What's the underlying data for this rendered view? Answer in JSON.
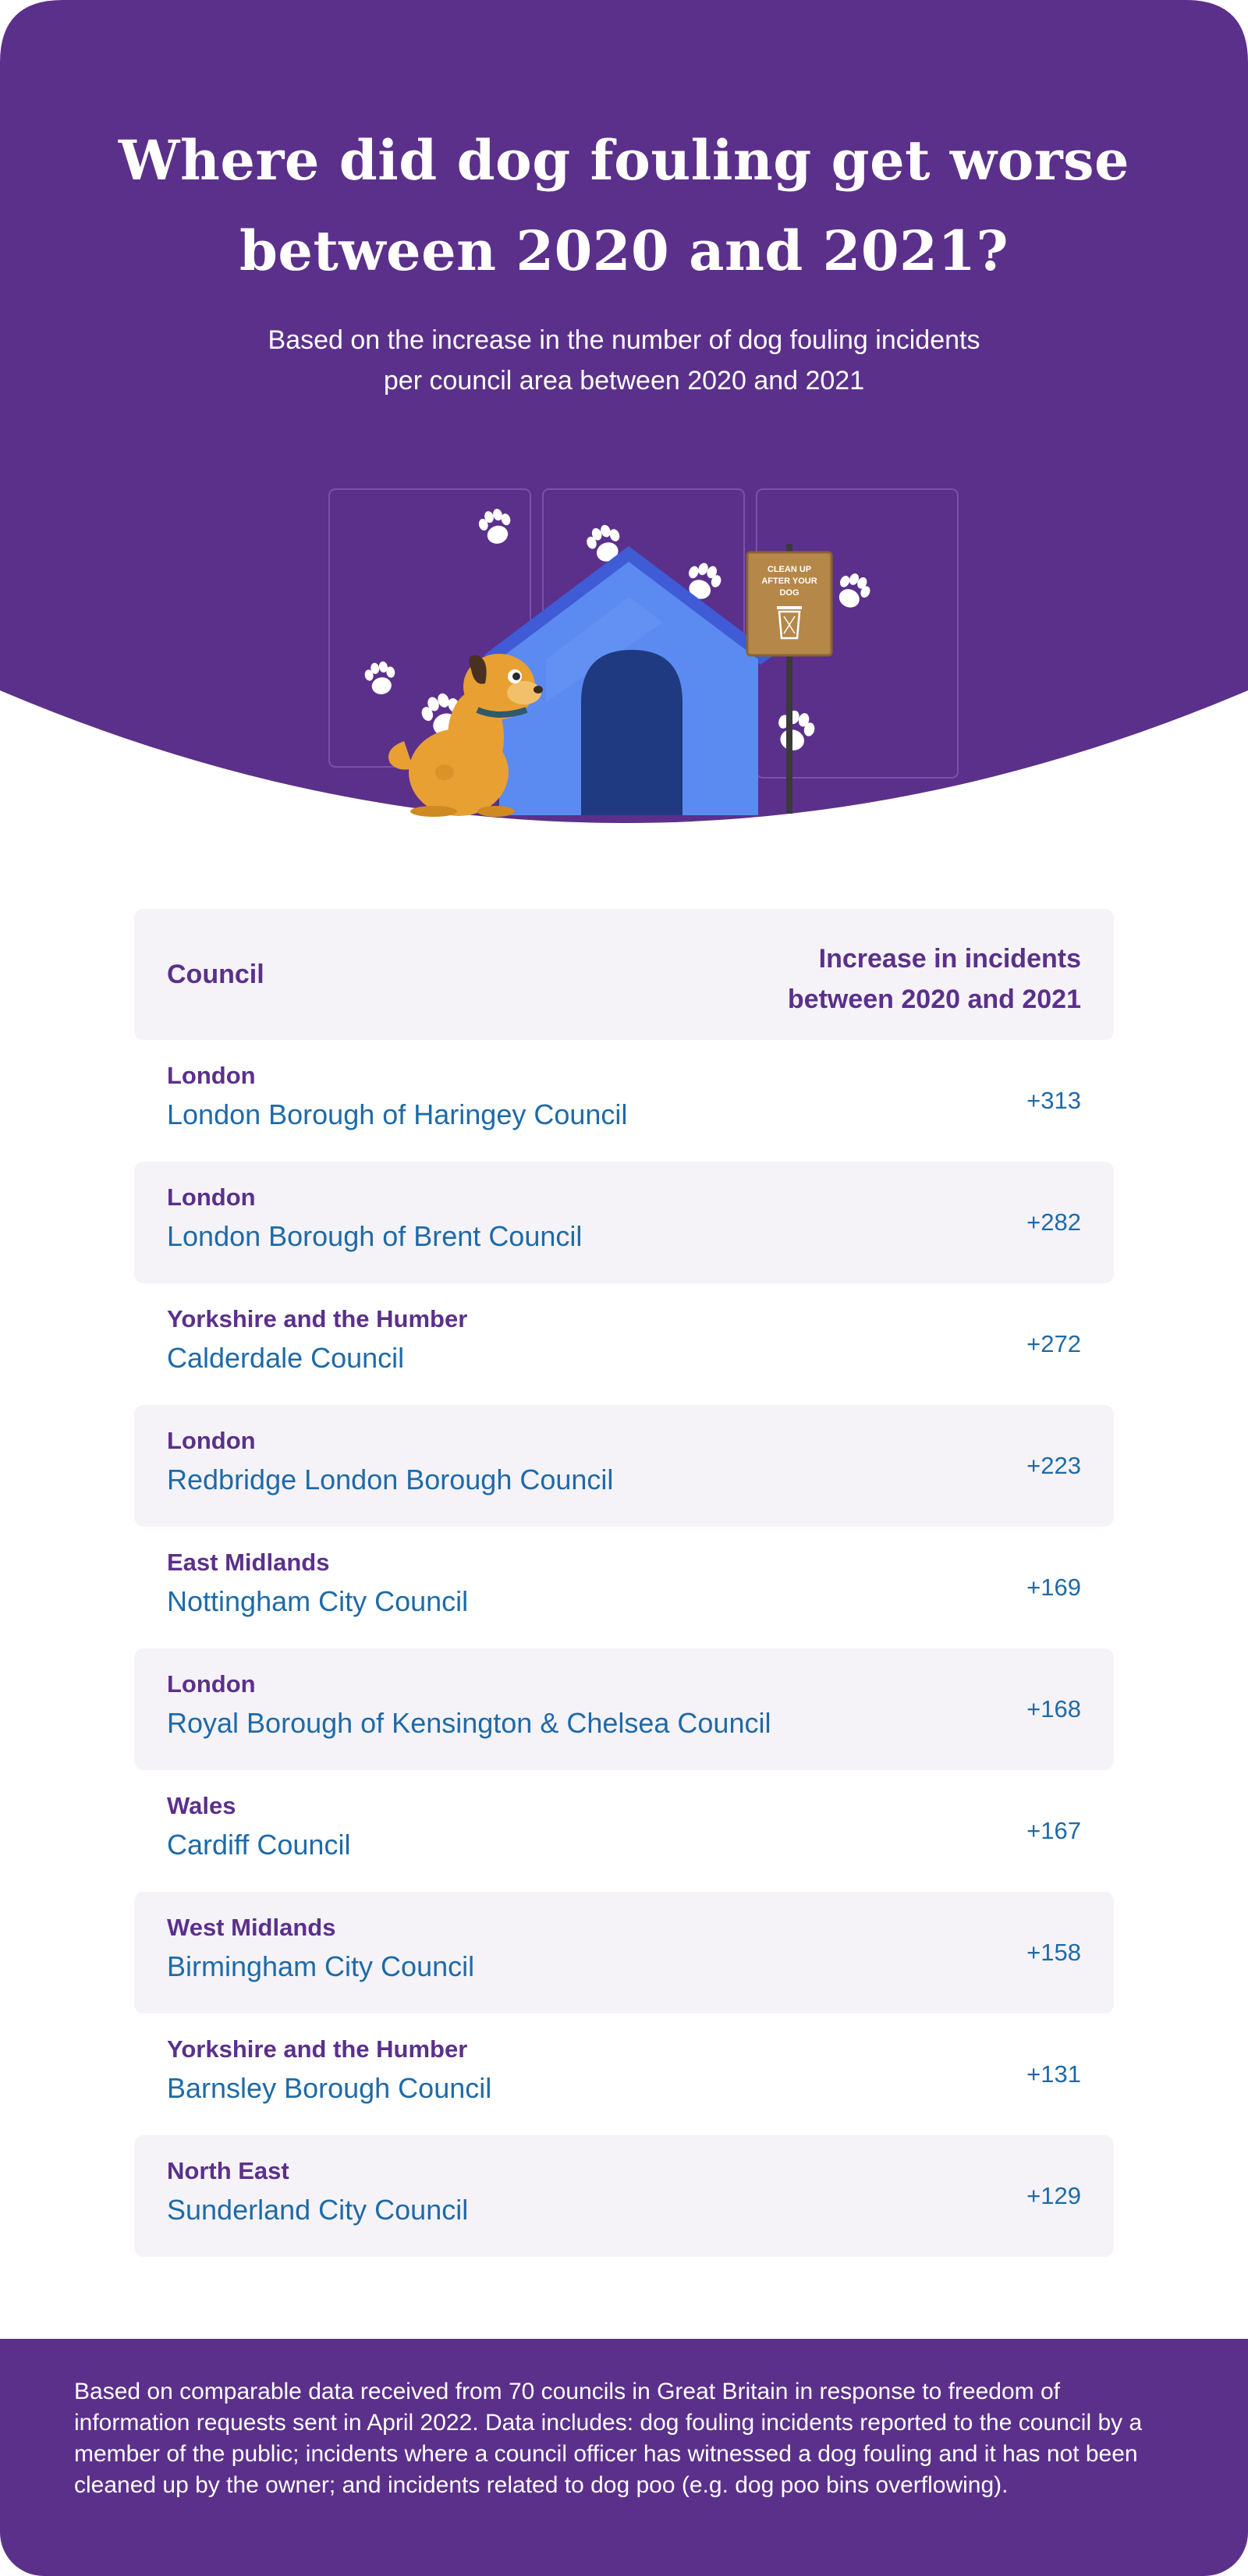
{
  "colors": {
    "brand_purple": "#5b308b",
    "row_shade": "#f5f3f8",
    "link_blue": "#1e6aa8",
    "doghouse_blue": "#5b8af0",
    "dog_orange": "#e8a033",
    "sign_brown": "#b5884a"
  },
  "header": {
    "title_line1": "Where did dog fouling get worse",
    "title_line2": "between 2020 and 2021?",
    "subtitle_line1": "Based on the increase in the number of dog fouling incidents",
    "subtitle_line2": "per council area between 2020 and 2021"
  },
  "illustration": {
    "sign_line1": "CLEAN UP",
    "sign_line2": "AFTER YOUR",
    "sign_line3": "DOG",
    "icons": [
      "doghouse-icon",
      "dog-icon",
      "paw-print-icon",
      "sign-icon",
      "bin-icon"
    ]
  },
  "table": {
    "header_council": "Council",
    "header_increase_line1": "Increase in incidents",
    "header_increase_line2": "between 2020 and 2021",
    "rows": [
      {
        "region": "London",
        "council": "London Borough of Haringey Council",
        "value": "+313"
      },
      {
        "region": "London",
        "council": "London Borough of Brent Council",
        "value": "+282"
      },
      {
        "region": "Yorkshire and the Humber",
        "council": "Calderdale Council",
        "value": "+272"
      },
      {
        "region": "London",
        "council": "Redbridge London Borough Council",
        "value": "+223"
      },
      {
        "region": "East Midlands",
        "council": "Nottingham City Council",
        "value": "+169"
      },
      {
        "region": "London",
        "council": "Royal Borough of Kensington & Chelsea Council",
        "value": "+168"
      },
      {
        "region": "Wales",
        "council": "Cardiff Council",
        "value": "+167"
      },
      {
        "region": "West Midlands",
        "council": "Birmingham City Council",
        "value": "+158"
      },
      {
        "region": "Yorkshire and the Humber",
        "council": "Barnsley Borough Council",
        "value": "+131"
      },
      {
        "region": "North East",
        "council": "Sunderland City Council",
        "value": "+129"
      }
    ]
  },
  "footer": {
    "note": "Based on comparable data received from 70 councils in Great Britain in response to freedom of information requests sent in April 2022. Data includes: dog fouling incidents reported to the council by a member of the public; incidents where a council officer has witnessed a dog fouling and it has not been cleaned up by the owner; and incidents related to dog poo (e.g. dog poo bins overflowing)."
  }
}
